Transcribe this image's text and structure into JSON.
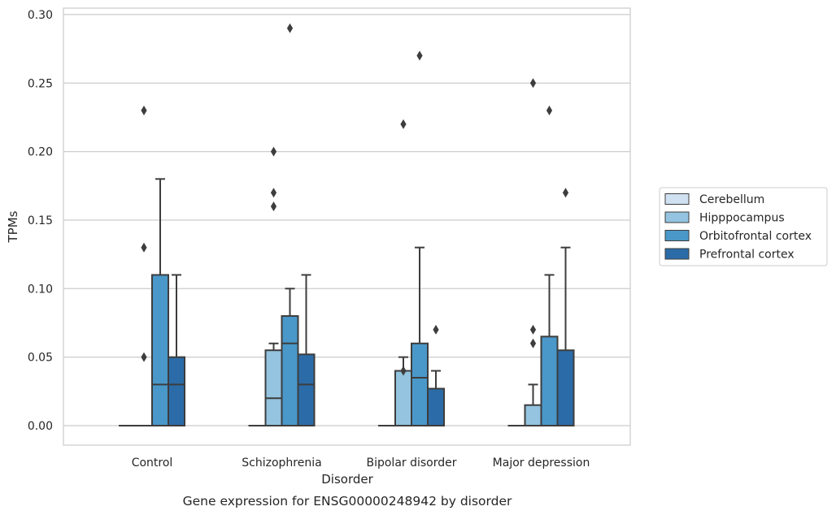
{
  "caption": "Gene expression for ENSG00000248942 by disorder",
  "chart_data": {
    "type": "boxplot",
    "xlabel": "Disorder",
    "ylabel": "TPMs",
    "ylim": [
      -0.014,
      0.302
    ],
    "yticks": [
      0.0,
      0.05,
      0.1,
      0.15,
      0.2,
      0.25,
      0.3
    ],
    "ytick_labels": [
      "0.00",
      "0.05",
      "0.10",
      "0.15",
      "0.20",
      "0.25",
      "0.30"
    ],
    "grid": "horizontal",
    "legend_position": "right",
    "categories": [
      "Control",
      "Schizophrenia",
      "Bipolar disorder",
      "Major depression"
    ],
    "series": [
      {
        "name": "Cerebellum",
        "color": "#d0e1f2",
        "boxes": [
          {
            "q1": 0.0,
            "median": 0.0,
            "q3": 0.0,
            "whisker_low": 0.0,
            "whisker_high": 0.0,
            "outliers": []
          },
          {
            "q1": 0.0,
            "median": 0.0,
            "q3": 0.0,
            "whisker_low": 0.0,
            "whisker_high": 0.0,
            "outliers": []
          },
          {
            "q1": 0.0,
            "median": 0.0,
            "q3": 0.0,
            "whisker_low": 0.0,
            "whisker_high": 0.0,
            "outliers": []
          },
          {
            "q1": 0.0,
            "median": 0.0,
            "q3": 0.0,
            "whisker_low": 0.0,
            "whisker_high": 0.0,
            "outliers": []
          }
        ]
      },
      {
        "name": "Hipppocampus",
        "color": "#94c4df",
        "boxes": [
          {
            "q1": 0.0,
            "median": 0.0,
            "q3": 0.0,
            "whisker_low": 0.0,
            "whisker_high": 0.0,
            "outliers": [
              0.23,
              0.13,
              0.05
            ]
          },
          {
            "q1": 0.0,
            "median": 0.02,
            "q3": 0.055,
            "whisker_low": 0.0,
            "whisker_high": 0.06,
            "outliers": [
              0.2,
              0.17,
              0.16
            ]
          },
          {
            "q1": 0.0,
            "median": 0.0,
            "q3": 0.04,
            "whisker_low": 0.0,
            "whisker_high": 0.05,
            "outliers": [
              0.22,
              0.04
            ]
          },
          {
            "q1": 0.0,
            "median": 0.0,
            "q3": 0.015,
            "whisker_low": 0.0,
            "whisker_high": 0.03,
            "outliers": [
              0.25,
              0.07,
              0.06
            ]
          }
        ]
      },
      {
        "name": "Orbitofrontal cortex",
        "color": "#4a98c9",
        "boxes": [
          {
            "q1": 0.0,
            "median": 0.03,
            "q3": 0.11,
            "whisker_low": 0.0,
            "whisker_high": 0.18,
            "outliers": []
          },
          {
            "q1": 0.0,
            "median": 0.06,
            "q3": 0.08,
            "whisker_low": 0.0,
            "whisker_high": 0.1,
            "outliers": [
              0.29
            ]
          },
          {
            "q1": 0.0,
            "median": 0.035,
            "q3": 0.06,
            "whisker_low": 0.0,
            "whisker_high": 0.13,
            "outliers": [
              0.27
            ]
          },
          {
            "q1": 0.0,
            "median": 0.0,
            "q3": 0.065,
            "whisker_low": 0.0,
            "whisker_high": 0.11,
            "outliers": [
              0.23
            ]
          }
        ]
      },
      {
        "name": "Prefrontal cortex",
        "color": "#2b6ca8",
        "boxes": [
          {
            "q1": 0.0,
            "median": 0.03,
            "q3": 0.05,
            "whisker_low": 0.0,
            "whisker_high": 0.11,
            "outliers": []
          },
          {
            "q1": 0.0,
            "median": 0.03,
            "q3": 0.052,
            "whisker_low": 0.0,
            "whisker_high": 0.11,
            "outliers": []
          },
          {
            "q1": 0.0,
            "median": 0.0,
            "q3": 0.027,
            "whisker_low": 0.0,
            "whisker_high": 0.04,
            "outliers": [
              0.07
            ]
          },
          {
            "q1": 0.0,
            "median": 0.0,
            "q3": 0.055,
            "whisker_low": 0.0,
            "whisker_high": 0.13,
            "outliers": [
              0.17
            ]
          }
        ]
      }
    ]
  }
}
